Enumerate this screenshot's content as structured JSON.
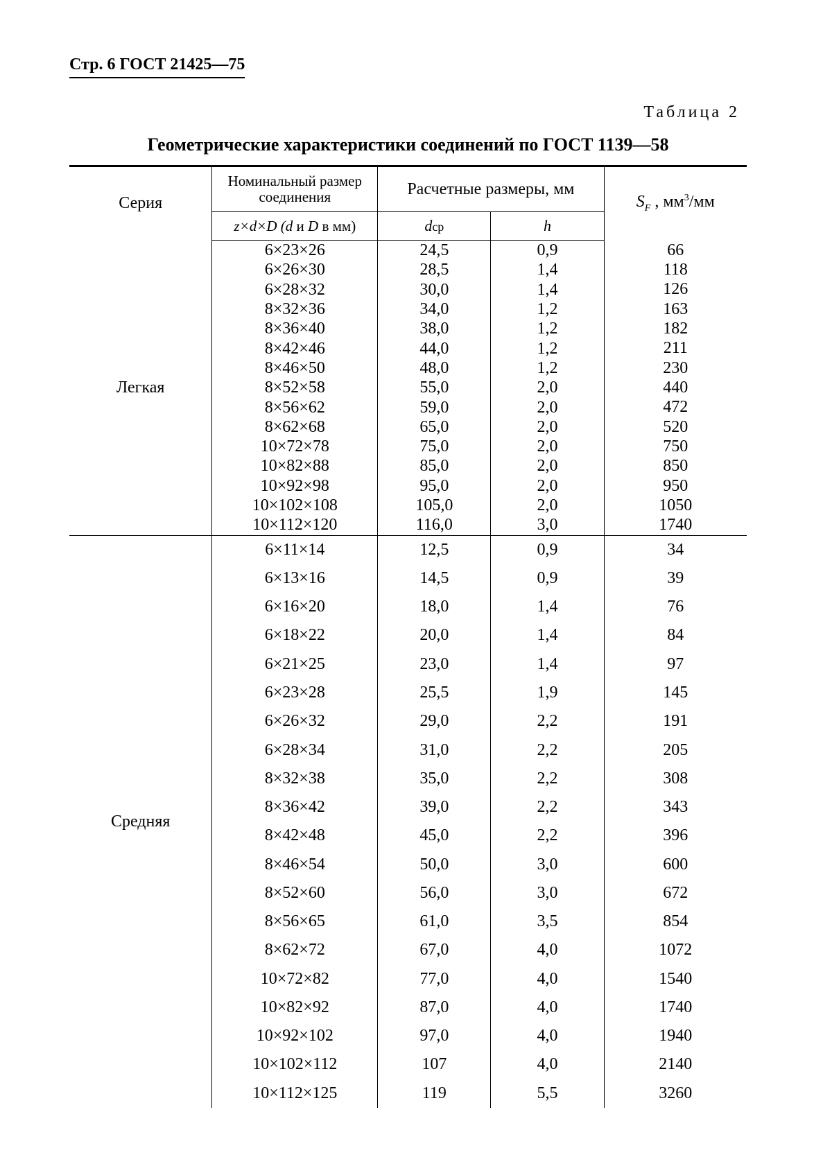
{
  "page_header_prefix": "Стр. 6 ",
  "page_header_gost": "ГОСТ 21425—75",
  "table_label": "Таблица 2",
  "table_title": "Геометрические характеристики соединений по ГОСТ 1139—58",
  "headers": {
    "series": "Серия",
    "nominal_top": "Номинальный размер соединения",
    "nominal_sub_prefix": "z×d×D (",
    "nominal_sub_d": "d",
    "nominal_sub_and": " и ",
    "nominal_sub_D": "D",
    "nominal_sub_suffix": " в мм)",
    "calc_top": "Расчетные размеры, мм",
    "dcp_d": "d",
    "dcp_sub": "ср",
    "h": "h",
    "sf_s": "S",
    "sf_fsub": "F",
    "sf_units_pre": " , мм",
    "sf_units_exp": "3",
    "sf_units_post": "/мм"
  },
  "groups": [
    {
      "series": "Легкая",
      "class": "group-light",
      "rows": [
        {
          "nom": "6×23×26",
          "dcp": "24,5",
          "h": "0,9",
          "sf": "66"
        },
        {
          "nom": "6×26×30",
          "dcp": "28,5",
          "h": "1,4",
          "sf": "118"
        },
        {
          "nom": "6×28×32",
          "dcp": "30,0",
          "h": "1,4",
          "sf": "126"
        },
        {
          "nom": "8×32×36",
          "dcp": "34,0",
          "h": "1,2",
          "sf": "163"
        },
        {
          "nom": "8×36×40",
          "dcp": "38,0",
          "h": "1,2",
          "sf": "182"
        },
        {
          "nom": "8×42×46",
          "dcp": "44,0",
          "h": "1,2",
          "sf": "211"
        },
        {
          "nom": "8×46×50",
          "dcp": "48,0",
          "h": "1,2",
          "sf": "230"
        },
        {
          "nom": "8×52×58",
          "dcp": "55,0",
          "h": "2,0",
          "sf": "440"
        },
        {
          "nom": "8×56×62",
          "dcp": "59,0",
          "h": "2,0",
          "sf": "472"
        },
        {
          "nom": "8×62×68",
          "dcp": "65,0",
          "h": "2,0",
          "sf": "520"
        },
        {
          "nom": "10×72×78",
          "dcp": "75,0",
          "h": "2,0",
          "sf": "750"
        },
        {
          "nom": "10×82×88",
          "dcp": "85,0",
          "h": "2,0",
          "sf": "850"
        },
        {
          "nom": "10×92×98",
          "dcp": "95,0",
          "h": "2,0",
          "sf": "950"
        },
        {
          "nom": "10×102×108",
          "dcp": "105,0",
          "h": "2,0",
          "sf": "1050"
        },
        {
          "nom": "10×112×120",
          "dcp": "116,0",
          "h": "3,0",
          "sf": "1740"
        }
      ]
    },
    {
      "series": "Средняя",
      "class": "group-med",
      "rows": [
        {
          "nom": "6×11×14",
          "dcp": "12,5",
          "h": "0,9",
          "sf": "34"
        },
        {
          "nom": "6×13×16",
          "dcp": "14,5",
          "h": "0,9",
          "sf": "39"
        },
        {
          "nom": "6×16×20",
          "dcp": "18,0",
          "h": "1,4",
          "sf": "76"
        },
        {
          "nom": "6×18×22",
          "dcp": "20,0",
          "h": "1,4",
          "sf": "84"
        },
        {
          "nom": "6×21×25",
          "dcp": "23,0",
          "h": "1,4",
          "sf": "97"
        },
        {
          "nom": "6×23×28",
          "dcp": "25,5",
          "h": "1,9",
          "sf": "145"
        },
        {
          "nom": "6×26×32",
          "dcp": "29,0",
          "h": "2,2",
          "sf": "191"
        },
        {
          "nom": "6×28×34",
          "dcp": "31,0",
          "h": "2,2",
          "sf": "205"
        },
        {
          "nom": "8×32×38",
          "dcp": "35,0",
          "h": "2,2",
          "sf": "308"
        },
        {
          "nom": "8×36×42",
          "dcp": "39,0",
          "h": "2,2",
          "sf": "343"
        },
        {
          "nom": "8×42×48",
          "dcp": "45,0",
          "h": "2,2",
          "sf": "396"
        },
        {
          "nom": "8×46×54",
          "dcp": "50,0",
          "h": "3,0",
          "sf": "600"
        },
        {
          "nom": "8×52×60",
          "dcp": "56,0",
          "h": "3,0",
          "sf": "672"
        },
        {
          "nom": "8×56×65",
          "dcp": "61,0",
          "h": "3,5",
          "sf": "854"
        },
        {
          "nom": "8×62×72",
          "dcp": "67,0",
          "h": "4,0",
          "sf": "1072"
        },
        {
          "nom": "10×72×82",
          "dcp": "77,0",
          "h": "4,0",
          "sf": "1540"
        },
        {
          "nom": "10×82×92",
          "dcp": "87,0",
          "h": "4,0",
          "sf": "1740"
        },
        {
          "nom": "10×92×102",
          "dcp": "97,0",
          "h": "4,0",
          "sf": "1940"
        },
        {
          "nom": "10×102×112",
          "dcp": "107",
          "h": "4,0",
          "sf": "2140"
        },
        {
          "nom": "10×112×125",
          "dcp": "119",
          "h": "5,5",
          "sf": "3260"
        }
      ]
    }
  ]
}
